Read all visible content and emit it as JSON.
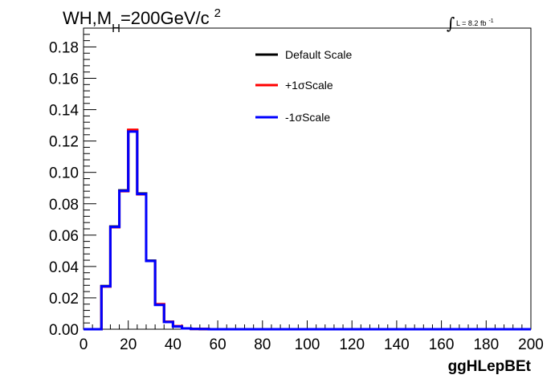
{
  "title": {
    "prefix": "WH,M",
    "subscript": "H",
    "main": "=200GeV/c",
    "superscript": "2"
  },
  "luminosity": {
    "integral_sign": "∫",
    "label": "L = 8.2 fb",
    "exponent": "-1"
  },
  "chart_data": {
    "type": "line",
    "style": "step-histogram",
    "xlabel": "ggHLepBEt",
    "ylabel": "",
    "xlim": [
      0,
      200
    ],
    "ylim": [
      0,
      0.192
    ],
    "bin_width": 4,
    "bin_edges": [
      0,
      4,
      8,
      12,
      16,
      20,
      24,
      28,
      32,
      36,
      40,
      44,
      48,
      52,
      56,
      60,
      64,
      68,
      72,
      76,
      80,
      84,
      88,
      92,
      96,
      100,
      104,
      108,
      112,
      116,
      120,
      124,
      128,
      132,
      136,
      140,
      144,
      148,
      152,
      156,
      160,
      164,
      168,
      172,
      176,
      180,
      184,
      188,
      192,
      196,
      200
    ],
    "x_ticks": [
      0,
      20,
      40,
      60,
      80,
      100,
      120,
      140,
      160,
      180,
      200
    ],
    "x_tick_labels": [
      "0",
      "20",
      "40",
      "60",
      "80",
      "100",
      "120",
      "140",
      "160",
      "180",
      "200"
    ],
    "y_ticks": [
      0,
      0.02,
      0.04,
      0.06,
      0.08,
      0.1,
      0.12,
      0.14,
      0.16,
      0.18
    ],
    "y_tick_labels": [
      "0.00",
      "0.02",
      "0.04",
      "0.06",
      "0.08",
      "0.10",
      "0.12",
      "0.14",
      "0.16",
      "0.18"
    ],
    "grid": false,
    "legend_position": "top-center",
    "series": [
      {
        "name": "Default Scale",
        "color": "#000000",
        "values": [
          0,
          0,
          0.0275,
          0.0655,
          0.0885,
          0.1268,
          0.0865,
          0.0437,
          0.0158,
          0.0047,
          0.0018,
          0.0005,
          0.0002,
          0.0001,
          0,
          0,
          0,
          0,
          0,
          0,
          0,
          0,
          0,
          0,
          0,
          0,
          0,
          0,
          0,
          0,
          0,
          0,
          0,
          0,
          0,
          0,
          0,
          0,
          0,
          0,
          0,
          0,
          0,
          0,
          0,
          0,
          0,
          0,
          0,
          0
        ]
      },
      {
        "name": "+1σScale",
        "color": "#ff0000",
        "values": [
          0,
          0,
          0.0272,
          0.065,
          0.088,
          0.1272,
          0.086,
          0.0435,
          0.016,
          0.0048,
          0.002,
          0.0005,
          0.0002,
          0.0001,
          0,
          0,
          0,
          0,
          0,
          0,
          0,
          0,
          0,
          0,
          0,
          0,
          0,
          0,
          0,
          0,
          0,
          0,
          0,
          0,
          0,
          0,
          0,
          0,
          0,
          0,
          0,
          0,
          0,
          0,
          0,
          0,
          0,
          0,
          0,
          0
        ]
      },
      {
        "name": "-1σScale",
        "color": "#0000ff",
        "values": [
          0,
          0,
          0.0273,
          0.0652,
          0.0882,
          0.126,
          0.0862,
          0.0435,
          0.0155,
          0.0046,
          0.0017,
          0.0005,
          0.0002,
          0.0001,
          0,
          0,
          0,
          0,
          0,
          0,
          0,
          0,
          0,
          0,
          0,
          0,
          0,
          0,
          0,
          0,
          0,
          0,
          0,
          0,
          0,
          0,
          0,
          0,
          0,
          0,
          0,
          0,
          0,
          0,
          0,
          0,
          0,
          0,
          0,
          0
        ]
      }
    ]
  }
}
